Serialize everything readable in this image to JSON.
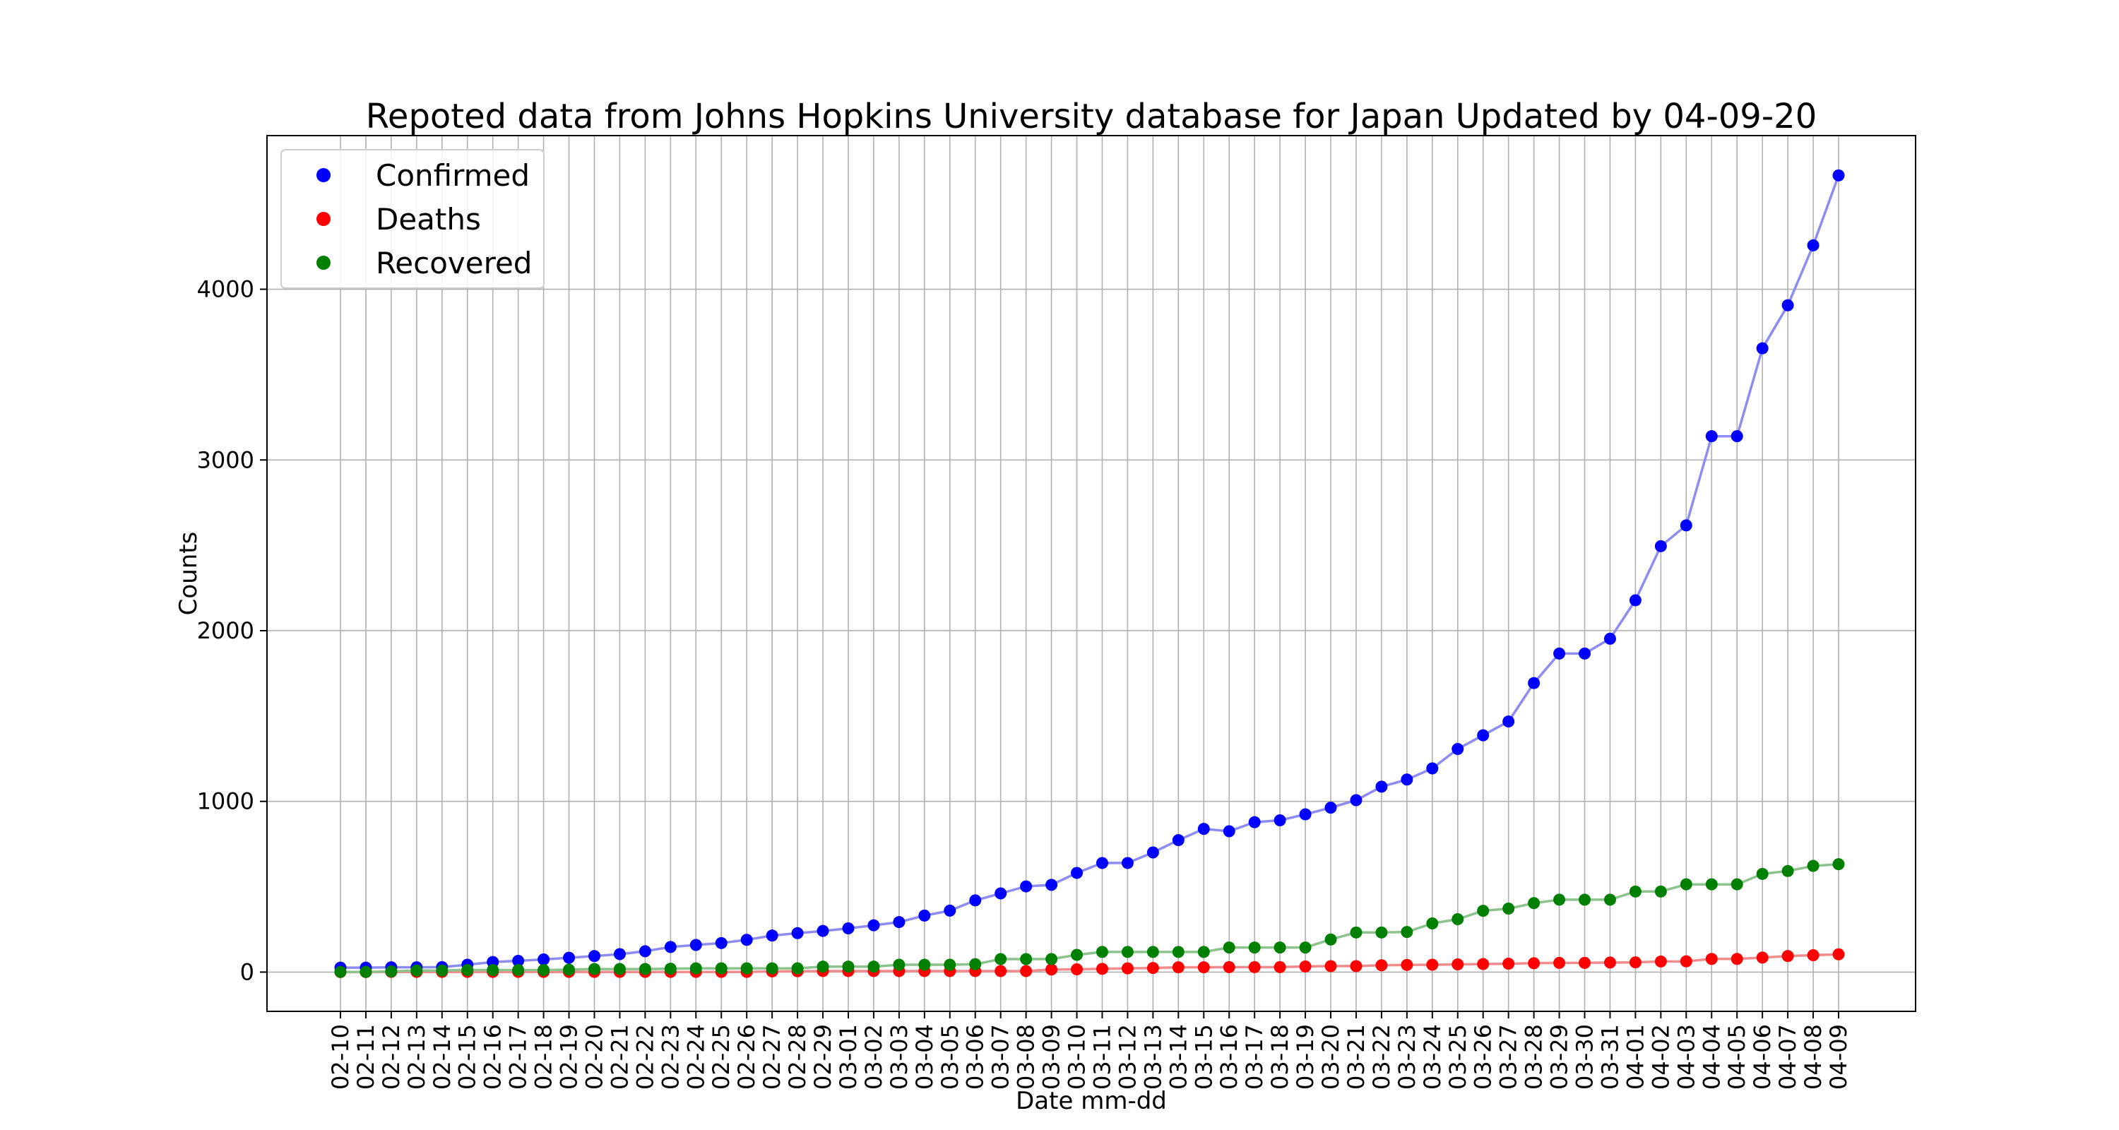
{
  "chart_data": {
    "type": "line",
    "title": "Repoted data from Johns Hopkins University database for Japan Updated by 04-09-20",
    "xlabel": "Date mm-dd",
    "ylabel": "Counts",
    "ylim": [
      -230,
      4900
    ],
    "yticks": [
      0,
      1000,
      2000,
      3000,
      4000
    ],
    "grid": true,
    "legend_position": "top-left",
    "x": [
      "02-10",
      "02-11",
      "02-12",
      "02-13",
      "02-14",
      "02-15",
      "02-16",
      "02-17",
      "02-18",
      "02-19",
      "02-20",
      "02-21",
      "02-22",
      "02-23",
      "02-24",
      "02-25",
      "02-26",
      "02-27",
      "02-28",
      "02-29",
      "03-01",
      "03-02",
      "03-03",
      "03-04",
      "03-05",
      "03-06",
      "03-07",
      "03-08",
      "03-09",
      "03-10",
      "03-11",
      "03-12",
      "03-13",
      "03-14",
      "03-15",
      "03-16",
      "03-17",
      "03-18",
      "03-19",
      "03-20",
      "03-21",
      "03-22",
      "03-23",
      "03-24",
      "03-25",
      "03-26",
      "03-27",
      "03-28",
      "03-29",
      "03-30",
      "03-31",
      "04-01",
      "04-02",
      "04-03",
      "04-04",
      "04-05",
      "04-06",
      "04-07",
      "04-08",
      "04-09"
    ],
    "series": [
      {
        "name": "Confirmed",
        "color": "#0000ff",
        "line_color": "#8c8cf2",
        "values": [
          26,
          26,
          28,
          28,
          29,
          43,
          59,
          66,
          74,
          84,
          94,
          105,
          122,
          147,
          159,
          170,
          189,
          214,
          228,
          241,
          256,
          274,
          293,
          331,
          360,
          420,
          461,
          502,
          511,
          581,
          639,
          639,
          701,
          773,
          839,
          825,
          878,
          889,
          924,
          963,
          1007,
          1086,
          1128,
          1193,
          1307,
          1387,
          1468,
          1693,
          1866,
          1866,
          1953,
          2178,
          2495,
          2617,
          3139,
          3139,
          3654,
          3906,
          4257,
          4667
        ]
      },
      {
        "name": "Deaths",
        "color": "#ff0000",
        "line_color": "#f28c8c",
        "values": [
          0,
          0,
          1,
          1,
          1,
          1,
          1,
          1,
          1,
          1,
          1,
          1,
          1,
          1,
          1,
          1,
          1,
          4,
          5,
          6,
          6,
          6,
          6,
          6,
          6,
          6,
          6,
          6,
          15,
          16,
          19,
          22,
          24,
          28,
          28,
          29,
          29,
          29,
          33,
          35,
          35,
          40,
          42,
          43,
          45,
          47,
          49,
          52,
          54,
          54,
          56,
          57,
          62,
          63,
          77,
          77,
          85,
          94,
          99,
          104
        ]
      },
      {
        "name": "Recovered",
        "color": "#008000",
        "line_color": "#8cc38c",
        "values": [
          1,
          1,
          4,
          9,
          9,
          12,
          12,
          12,
          12,
          14,
          18,
          18,
          18,
          20,
          22,
          22,
          22,
          22,
          22,
          32,
          32,
          32,
          43,
          43,
          43,
          46,
          76,
          76,
          76,
          101,
          118,
          118,
          118,
          118,
          118,
          144,
          144,
          144,
          144,
          191,
          232,
          232,
          235,
          285,
          310,
          359,
          372,
          404,
          424,
          424,
          424,
          472,
          472,
          514,
          514,
          514,
          575,
          592,
          622,
          632
        ]
      }
    ]
  }
}
